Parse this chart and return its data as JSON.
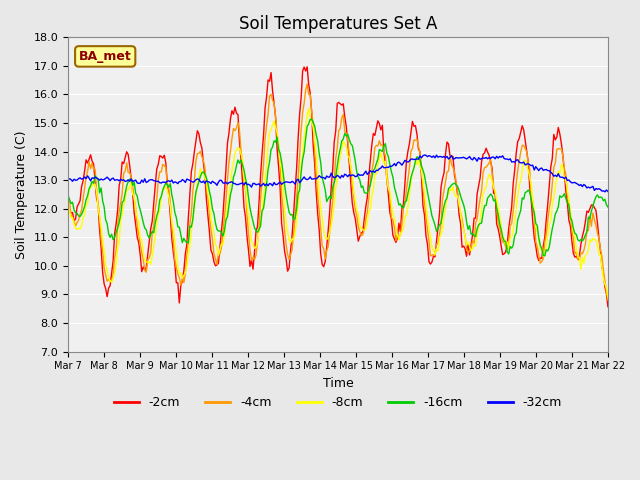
{
  "title": "Soil Temperatures Set A",
  "xlabel": "Time",
  "ylabel": "Soil Temperature (C)",
  "ylim": [
    7.0,
    18.0
  ],
  "yticks": [
    7.0,
    8.0,
    9.0,
    10.0,
    11.0,
    12.0,
    13.0,
    14.0,
    15.0,
    16.0,
    17.0,
    18.0
  ],
  "xtick_labels": [
    "Mar 7",
    "Mar 8",
    "Mar 9",
    "Mar 10",
    "Mar 11",
    "Mar 12",
    "Mar 13",
    "Mar 14",
    "Mar 15",
    "Mar 16",
    "Mar 17",
    "Mar 18",
    "Mar 19",
    "Mar 20",
    "Mar 21",
    "Mar 22"
  ],
  "legend_label": "BA_met",
  "series_labels": [
    "-2cm",
    "-4cm",
    "-8cm",
    "-16cm",
    "-32cm"
  ],
  "series_colors": [
    "#ff0000",
    "#ff9900",
    "#ffff00",
    "#00cc00",
    "#0000ff"
  ],
  "background_color": "#e8e8e8",
  "plot_bg_color": "#f0f0f0",
  "n_days": 15,
  "n_points_per_day": 24
}
